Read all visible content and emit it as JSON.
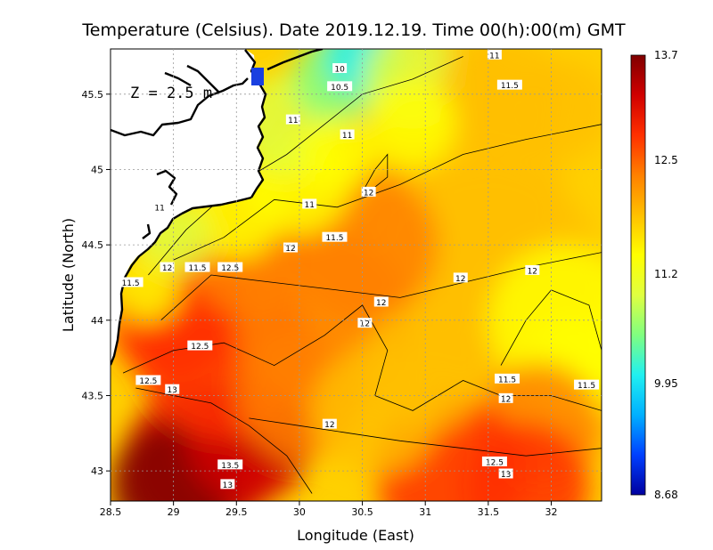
{
  "chart_data": {
    "type": "heatmap",
    "title": "Temperature (Celsius). Date 2019.12.19. Time 00(h):00(m) GMT",
    "xlabel": "Longitude (East)",
    "ylabel": "Latitude (North)",
    "depth_label": "Z = 2.5 m",
    "xlim": [
      28.5,
      32.4
    ],
    "ylim": [
      42.8,
      45.8
    ],
    "x_ticks": [
      "28.5",
      "29",
      "29.5",
      "30",
      "30.5",
      "31",
      "31.5",
      "32"
    ],
    "x_tick_values": [
      28.5,
      29,
      29.5,
      30,
      30.5,
      31,
      31.5,
      32
    ],
    "y_ticks": [
      "43",
      "43.5",
      "44",
      "44.5",
      "45",
      "45.5"
    ],
    "y_tick_values": [
      43,
      43.5,
      44,
      44.5,
      45,
      45.5
    ],
    "grid": true,
    "colorbar": {
      "min": 8.68,
      "max": 13.7,
      "tick_labels": [
        "8.68",
        "9.95",
        "11.2",
        "12.5",
        "13.7"
      ],
      "tick_values": [
        8.68,
        9.95,
        11.2,
        12.5,
        13.7
      ],
      "colors": [
        "#0000a0",
        "#0040ff",
        "#00b0ff",
        "#20f0f0",
        "#80ff80",
        "#e0ff40",
        "#ffff00",
        "#ffc000",
        "#ff8000",
        "#ff3000",
        "#d00000",
        "#800000"
      ]
    },
    "contour_levels": [
      10,
      10.5,
      11,
      11.5,
      12,
      12.5,
      13,
      13.5
    ],
    "contour_labels": [
      {
        "text": "10",
        "lon": 30.32,
        "lat": 45.67
      },
      {
        "text": "10.5",
        "lon": 30.32,
        "lat": 45.55
      },
      {
        "text": "11",
        "lon": 31.55,
        "lat": 45.76
      },
      {
        "text": "11.5",
        "lon": 31.67,
        "lat": 45.56
      },
      {
        "text": "11",
        "lon": 29.95,
        "lat": 45.33
      },
      {
        "text": "11",
        "lon": 30.38,
        "lat": 45.23
      },
      {
        "text": "12",
        "lon": 30.55,
        "lat": 44.85
      },
      {
        "text": "11",
        "lon": 30.08,
        "lat": 44.77
      },
      {
        "text": "11",
        "lon": 28.89,
        "lat": 44.75
      },
      {
        "text": "11.5",
        "lon": 30.28,
        "lat": 44.55
      },
      {
        "text": "12",
        "lon": 29.93,
        "lat": 44.48
      },
      {
        "text": "12",
        "lon": 28.95,
        "lat": 44.35
      },
      {
        "text": "11.5",
        "lon": 29.19,
        "lat": 44.35
      },
      {
        "text": "12.5",
        "lon": 29.45,
        "lat": 44.35
      },
      {
        "text": "11.5",
        "lon": 28.66,
        "lat": 44.25
      },
      {
        "text": "12",
        "lon": 31.28,
        "lat": 44.28
      },
      {
        "text": "12",
        "lon": 31.85,
        "lat": 44.33
      },
      {
        "text": "12",
        "lon": 30.65,
        "lat": 44.12
      },
      {
        "text": "12",
        "lon": 30.52,
        "lat": 43.98
      },
      {
        "text": "12.5",
        "lon": 29.21,
        "lat": 43.83
      },
      {
        "text": "12.5",
        "lon": 28.8,
        "lat": 43.6
      },
      {
        "text": "13",
        "lon": 28.99,
        "lat": 43.54
      },
      {
        "text": "11.5",
        "lon": 31.65,
        "lat": 43.61
      },
      {
        "text": "11.5",
        "lon": 32.28,
        "lat": 43.57
      },
      {
        "text": "12",
        "lon": 31.64,
        "lat": 43.48
      },
      {
        "text": "12",
        "lon": 30.24,
        "lat": 43.31
      },
      {
        "text": "12.5",
        "lon": 31.55,
        "lat": 43.06
      },
      {
        "text": "13.5",
        "lon": 29.45,
        "lat": 43.04
      },
      {
        "text": "13",
        "lon": 31.64,
        "lat": 42.98
      },
      {
        "text": "13",
        "lon": 29.43,
        "lat": 42.91
      }
    ]
  }
}
